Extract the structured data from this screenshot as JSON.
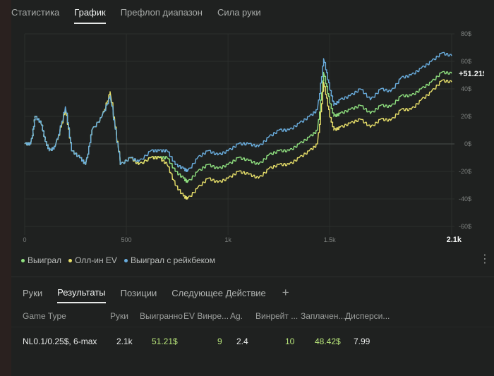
{
  "top_tabs": [
    {
      "label": "Статистика",
      "active": false
    },
    {
      "label": "График",
      "active": true
    },
    {
      "label": "Префлоп диапазон",
      "active": false
    },
    {
      "label": "Сила руки",
      "active": false
    }
  ],
  "chart_data": {
    "type": "line",
    "x_ticks": [
      "0",
      "500",
      "1k",
      "1.5k",
      "2.1k"
    ],
    "x_tick_values": [
      0,
      500,
      1000,
      1500,
      2100
    ],
    "y_ticks": [
      "80$",
      "60$",
      "40$",
      "20$",
      "0$",
      "-20$",
      "-40$",
      "-60$"
    ],
    "y_tick_values": [
      80,
      60,
      40,
      20,
      0,
      -20,
      -40,
      -60
    ],
    "xlim": [
      0,
      2100
    ],
    "ylim": [
      -60,
      80
    ],
    "end_label": "+51.21$",
    "series": [
      {
        "name": "Выиграл",
        "color": "#8fe07f",
        "x": [
          0,
          30,
          50,
          80,
          100,
          120,
          150,
          200,
          230,
          270,
          300,
          330,
          380,
          420,
          470,
          520,
          560,
          620,
          660,
          700,
          740,
          780,
          800,
          850,
          900,
          950,
          1000,
          1050,
          1100,
          1150,
          1200,
          1250,
          1300,
          1350,
          1400,
          1440,
          1470,
          1500,
          1520,
          1550,
          1600,
          1650,
          1700,
          1750,
          1800,
          1850,
          1900,
          1950,
          2000,
          2050,
          2100
        ],
        "y": [
          0,
          0,
          20,
          15,
          2,
          -5,
          -2,
          25,
          -5,
          -10,
          -15,
          10,
          20,
          35,
          -15,
          -10,
          -15,
          -10,
          -10,
          -10,
          -20,
          -25,
          -28,
          -20,
          -15,
          -18,
          -15,
          -10,
          -12,
          -15,
          -8,
          -5,
          -5,
          0,
          5,
          10,
          52,
          30,
          20,
          22,
          25,
          28,
          22,
          28,
          27,
          35,
          35,
          40,
          45,
          52,
          51.21
        ]
      },
      {
        "name": "Олл-ин EV",
        "color": "#e8e06a",
        "x": [
          0,
          30,
          50,
          80,
          100,
          120,
          150,
          200,
          230,
          270,
          300,
          330,
          380,
          420,
          470,
          520,
          560,
          620,
          660,
          700,
          740,
          780,
          800,
          850,
          900,
          950,
          1000,
          1050,
          1100,
          1150,
          1200,
          1250,
          1300,
          1350,
          1400,
          1440,
          1470,
          1500,
          1520,
          1550,
          1600,
          1650,
          1700,
          1750,
          1800,
          1850,
          1900,
          1950,
          2000,
          2050,
          2100
        ],
        "y": [
          0,
          0,
          20,
          15,
          2,
          -5,
          -2,
          25,
          -5,
          -10,
          -15,
          10,
          20,
          38,
          -15,
          -10,
          -15,
          -10,
          -10,
          -15,
          -30,
          -38,
          -40,
          -32,
          -25,
          -28,
          -25,
          -20,
          -22,
          -25,
          -18,
          -15,
          -15,
          -10,
          -5,
          0,
          45,
          20,
          10,
          12,
          15,
          18,
          12,
          18,
          17,
          25,
          25,
          32,
          38,
          46,
          45
        ]
      },
      {
        "name": "Выиграл с рейкбеком",
        "color": "#6aaedf",
        "x": [
          0,
          30,
          50,
          80,
          100,
          120,
          150,
          200,
          230,
          270,
          300,
          330,
          380,
          420,
          470,
          520,
          560,
          620,
          660,
          700,
          740,
          780,
          800,
          850,
          900,
          950,
          1000,
          1050,
          1100,
          1150,
          1200,
          1250,
          1300,
          1350,
          1400,
          1440,
          1470,
          1500,
          1520,
          1550,
          1600,
          1650,
          1700,
          1750,
          1800,
          1850,
          1900,
          1950,
          2000,
          2050,
          2100
        ],
        "y": [
          0,
          0,
          20,
          15,
          2,
          -5,
          -2,
          27,
          -5,
          -10,
          -15,
          10,
          20,
          35,
          -15,
          -10,
          -13,
          -5,
          -5,
          -5,
          -15,
          -18,
          -20,
          -10,
          -5,
          -8,
          -5,
          0,
          0,
          -2,
          5,
          10,
          10,
          15,
          20,
          25,
          62,
          40,
          28,
          32,
          35,
          40,
          32,
          40,
          38,
          48,
          50,
          55,
          60,
          66,
          64
        ]
      }
    ]
  },
  "legend": [
    {
      "label": "Выиграл",
      "color": "#8fe07f"
    },
    {
      "label": "Олл-ин EV",
      "color": "#e8e06a"
    },
    {
      "label": "Выиграл с рейкбеком",
      "color": "#6aaedf"
    }
  ],
  "menu_icon": "kebab-menu-icon",
  "bottom_tabs": [
    {
      "label": "Руки",
      "active": false
    },
    {
      "label": "Результаты",
      "active": true
    },
    {
      "label": "Позиции",
      "active": false
    },
    {
      "label": "Следующее Действие",
      "active": false
    }
  ],
  "add_tab_icon": "+",
  "table": {
    "headers": [
      "Game Type",
      "Руки",
      "Выигранно",
      "EV Винре...",
      "Ag.",
      "Винрейт ...",
      "Заплачен...",
      "Дисперси..."
    ],
    "rows": [
      [
        "NL0.1/0.25$, 6-max",
        "2.1k",
        "51.21$",
        "9",
        "2.4",
        "10",
        "48.42$",
        "7.99"
      ]
    ]
  }
}
